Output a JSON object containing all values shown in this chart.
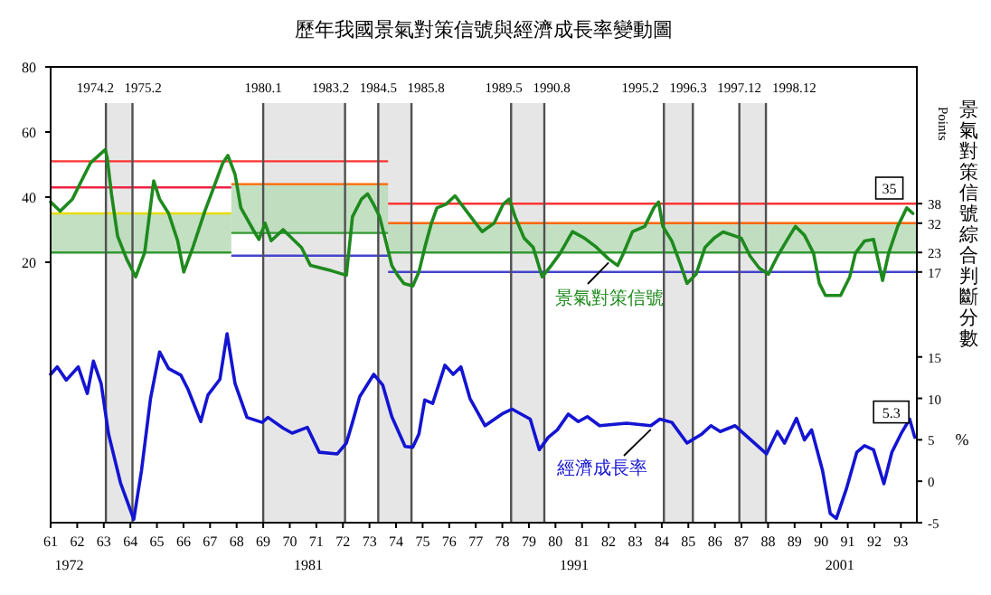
{
  "chart_data": {
    "type": "line",
    "title": "歷年我國景氣對策信號與經濟成長率變動圖",
    "xlim": [
      61,
      93.6
    ],
    "xticks": [
      61,
      62,
      63,
      64,
      65,
      66,
      67,
      68,
      69,
      70,
      71,
      72,
      73,
      74,
      75,
      76,
      77,
      78,
      79,
      80,
      81,
      82,
      83,
      84,
      85,
      86,
      87,
      88,
      89,
      90,
      91,
      92,
      93
    ],
    "x2lim": [
      1971.3,
      2003.9
    ],
    "x2ticks": [
      1972,
      1981,
      1991,
      2001
    ],
    "ylim": [
      -60,
      80
    ],
    "yticks": [
      20,
      40,
      60,
      80
    ],
    "y2lim": [
      -5,
      50
    ],
    "y2ticks": [
      -5,
      0,
      5,
      10,
      15
    ],
    "y2label": "%",
    "y3lim": [
      -60,
      80
    ],
    "y3ticks": [
      17,
      23,
      32,
      38
    ],
    "y3label": "Points",
    "annotations": [
      "景氣對策信號綜合判斷分數",
      "1974.2",
      "1975.2",
      "1980.1",
      "1983.2",
      "1984.5",
      "1985.8",
      "1989.5",
      "1990.8",
      "1995.2",
      "1996.3",
      "1997.12",
      "1998.12"
    ],
    "legend": false,
    "grid": false,
    "marker": "none",
    "bands": [
      {
        "axis": "x",
        "from": 63.08,
        "to": 64.08,
        "color": "#e6e6e6"
      },
      {
        "axis": "x",
        "from": 69.0,
        "to": 72.08,
        "color": "#e6e6e6"
      },
      {
        "axis": "x",
        "from": 73.33,
        "to": 74.58,
        "color": "#e6e6e6"
      },
      {
        "axis": "x",
        "from": 78.33,
        "to": 79.58,
        "color": "#e6e6e6"
      },
      {
        "axis": "x",
        "from": 84.08,
        "to": 85.17,
        "color": "#e6e6e6"
      },
      {
        "axis": "x",
        "from": 86.92,
        "to": 87.92,
        "color": "#e6e6e6"
      }
    ],
    "ref_lines": [
      {
        "axis": "x",
        "value": 63.08,
        "color": "#505050"
      },
      {
        "axis": "x",
        "value": 64.08,
        "color": "#505050"
      },
      {
        "axis": "x",
        "value": 69.0,
        "color": "#505050"
      },
      {
        "axis": "x",
        "value": 72.08,
        "color": "#505050"
      },
      {
        "axis": "x",
        "value": 73.33,
        "color": "#505050"
      },
      {
        "axis": "x",
        "value": 74.58,
        "color": "#505050"
      },
      {
        "axis": "x",
        "value": 78.33,
        "color": "#505050"
      },
      {
        "axis": "x",
        "value": 79.58,
        "color": "#505050"
      },
      {
        "axis": "x",
        "value": 84.08,
        "color": "#505050"
      },
      {
        "axis": "x",
        "value": 85.17,
        "color": "#505050"
      },
      {
        "axis": "x",
        "value": 86.92,
        "color": "#505050"
      },
      {
        "axis": "x",
        "value": 87.92,
        "color": "#505050"
      }
    ],
    "series": [
      {
        "type": "line",
        "color": "#339933",
        "x": [
          61,
          67.8
        ],
        "values": [
          23,
          23
        ],
        "lower": [
          23,
          23
        ],
        "upper": [
          35,
          35
        ]
      },
      {
        "type": "line",
        "color": "#339933",
        "x": [
          67.8,
          73.7
        ],
        "values": [
          29,
          29
        ],
        "lower": [
          29,
          29
        ],
        "upper": [
          44,
          44
        ]
      },
      {
        "type": "line",
        "color": "#339933",
        "x": [
          73.7,
          93.6
        ],
        "values": [
          23,
          23
        ],
        "lower": [
          23,
          23
        ],
        "upper": [
          32,
          32
        ]
      },
      {
        "type": "line",
        "color": "#ff3333",
        "x": [
          61,
          73.7
        ],
        "values": [
          51,
          51
        ]
      },
      {
        "type": "line",
        "color": "#ee2244",
        "x": [
          61,
          67.8
        ],
        "values": [
          43,
          43
        ]
      },
      {
        "type": "line",
        "color": "#e8dc00",
        "x": [
          61,
          67.8
        ],
        "values": [
          35,
          35
        ]
      },
      {
        "type": "line",
        "color": "#ff6600",
        "x": [
          67.8,
          73.7
        ],
        "values": [
          44,
          44
        ]
      },
      {
        "type": "line",
        "color": "#4444cc",
        "x": [
          67.8,
          73.7
        ],
        "values": [
          22,
          22
        ]
      },
      {
        "type": "line",
        "color": "#ff3333",
        "x": [
          73.7,
          93.6
        ],
        "values": [
          38,
          38
        ]
      },
      {
        "type": "line",
        "color": "#ff6600",
        "x": [
          73.7,
          93.6
        ],
        "values": [
          32,
          32
        ]
      },
      {
        "type": "line",
        "color": "#4444cc",
        "x": [
          73.7,
          93.6
        ],
        "values": [
          17,
          17
        ]
      },
      {
        "type": "line",
        "name": "景氣對策信號",
        "color": "#1e8a1e",
        "x": [
          61.0,
          61.36,
          61.82,
          62.16,
          62.5,
          62.84,
          63.06,
          63.13,
          63.29,
          63.52,
          63.86,
          64.2,
          64.54,
          64.88,
          65.1,
          65.44,
          65.78,
          66.01,
          66.35,
          66.8,
          67.14,
          67.48,
          67.67,
          67.94,
          68.16,
          68.62,
          68.84,
          69.07,
          69.3,
          69.75,
          70.44,
          70.78,
          71.56,
          72.13,
          72.36,
          72.7,
          72.93,
          73.16,
          73.38,
          73.61,
          73.84,
          74.06,
          74.29,
          74.63,
          74.86,
          75.08,
          75.33,
          75.54,
          75.88,
          76.22,
          76.9,
          77.24,
          77.69,
          78.03,
          78.26,
          78.48,
          78.82,
          79.16,
          79.5,
          79.84,
          80.18,
          80.64,
          81.09,
          81.54,
          82.0,
          82.34,
          82.56,
          82.9,
          83.36,
          83.7,
          83.88,
          84.04,
          84.38,
          84.72,
          84.95,
          85.29,
          85.63,
          85.97,
          86.31,
          86.99,
          87.33,
          87.67,
          88.01,
          88.35,
          88.69,
          89.03,
          89.37,
          89.71,
          89.93,
          90.16,
          90.73,
          91.07,
          91.29,
          91.63,
          91.97,
          92.31,
          92.54,
          92.88,
          93.22,
          93.45
        ],
        "values": [
          38.5,
          35.7,
          39.4,
          45,
          50.5,
          53,
          54.6,
          52,
          41,
          28,
          21,
          15.5,
          23,
          45,
          39.4,
          35,
          26.6,
          17,
          24.5,
          35.6,
          43,
          50.5,
          52.8,
          47,
          36.7,
          30,
          27,
          32,
          26.6,
          30,
          24.5,
          19,
          17.4,
          16,
          34,
          39.4,
          41,
          37.7,
          34,
          26.6,
          19,
          16,
          13.5,
          12.7,
          17,
          24.5,
          32,
          36.7,
          37.8,
          40.4,
          33,
          29.4,
          32,
          37.8,
          39.4,
          34,
          27.4,
          24.6,
          15.5,
          19,
          22.8,
          29.4,
          27.4,
          24.6,
          21,
          19,
          22.8,
          29.4,
          31,
          36.7,
          38.5,
          31,
          26.5,
          19,
          13.5,
          16.3,
          24.6,
          27.4,
          29.3,
          27.4,
          21.8,
          18.2,
          16.3,
          21.8,
          26.5,
          31,
          28.3,
          22.8,
          13.5,
          9.8,
          9.8,
          15.4,
          22.8,
          26.5,
          27,
          14.4,
          22.8,
          31,
          36.7,
          35
        ],
        "value_labels": [
          null,
          null,
          null,
          null,
          null,
          null,
          null,
          null,
          null,
          null,
          null,
          null,
          null,
          null,
          null,
          null,
          null,
          null,
          null,
          null,
          null,
          null,
          null,
          null,
          null,
          null,
          null,
          null,
          null,
          null,
          null,
          null,
          null,
          null,
          null,
          null,
          null,
          null,
          null,
          null,
          null,
          null,
          null,
          null,
          null,
          null,
          null,
          null,
          null,
          null,
          null,
          null,
          null,
          null,
          null,
          null,
          null,
          null,
          null,
          null,
          null,
          null,
          null,
          null,
          null,
          null,
          null,
          null,
          null,
          null,
          null,
          null,
          null,
          null,
          null,
          null,
          null,
          null,
          null,
          null,
          null,
          null,
          null,
          null,
          null,
          null,
          null,
          null,
          null,
          null,
          null,
          null,
          null,
          null,
          null,
          null,
          null,
          null,
          null,
          "35"
        ]
      },
      {
        "type": "line",
        "axis": "y2",
        "name": "經濟成長率",
        "color": "#1414d2",
        "x": [
          61.0,
          61.25,
          61.59,
          62.04,
          62.38,
          62.61,
          62.9,
          63.18,
          63.63,
          64.13,
          64.42,
          64.76,
          65.1,
          65.44,
          65.9,
          66.17,
          66.65,
          66.92,
          67.37,
          67.64,
          67.94,
          68.39,
          68.96,
          69.18,
          69.75,
          70.09,
          70.66,
          71.11,
          71.79,
          72.13,
          72.36,
          72.63,
          73.16,
          73.5,
          73.84,
          74.34,
          74.63,
          74.86,
          75.08,
          75.38,
          75.84,
          76.15,
          76.44,
          76.78,
          77.35,
          78.03,
          78.37,
          79.05,
          79.39,
          79.73,
          80.07,
          80.48,
          80.86,
          81.2,
          81.66,
          82.68,
          83.59,
          83.93,
          84.38,
          84.95,
          85.51,
          85.85,
          86.2,
          86.76,
          87.1,
          87.94,
          88.35,
          88.62,
          89.07,
          89.37,
          89.64,
          90.05,
          90.34,
          90.57,
          90.95,
          91.34,
          91.63,
          91.97,
          92.36,
          92.66,
          93.0,
          93.33,
          93.52
        ],
        "values": [
          12.9,
          13.8,
          12.2,
          13.8,
          10.6,
          14.5,
          11.8,
          5.7,
          -0.2,
          -4.6,
          1.3,
          10,
          15.6,
          13.6,
          12.8,
          11.1,
          7.2,
          10.4,
          12.3,
          17.8,
          11.8,
          7.7,
          7.1,
          7.7,
          6.4,
          5.8,
          6.5,
          3.5,
          3.3,
          4.6,
          7.1,
          10.2,
          12.9,
          11.6,
          7.8,
          4.2,
          4.1,
          5.7,
          9.8,
          9.4,
          14,
          12.9,
          13.8,
          10,
          6.7,
          8.2,
          8.7,
          7.5,
          3.8,
          5.3,
          6.2,
          8.1,
          7.2,
          7.8,
          6.7,
          7,
          6.7,
          7.5,
          7.1,
          4.6,
          5.7,
          6.7,
          6,
          6.7,
          5.7,
          3.3,
          6,
          4.6,
          7.6,
          5,
          6.2,
          1.3,
          -3.9,
          -4.5,
          -0.9,
          3.5,
          4.3,
          3.8,
          -0.3,
          3.5,
          5.7,
          7.5,
          5.3
        ],
        "value_labels": [
          null,
          null,
          null,
          null,
          null,
          null,
          null,
          null,
          null,
          null,
          null,
          null,
          null,
          null,
          null,
          null,
          null,
          null,
          null,
          null,
          null,
          null,
          null,
          null,
          null,
          null,
          null,
          null,
          null,
          null,
          null,
          null,
          null,
          null,
          null,
          null,
          null,
          null,
          null,
          null,
          null,
          null,
          null,
          null,
          null,
          null,
          null,
          null,
          null,
          null,
          null,
          null,
          null,
          null,
          null,
          null,
          null,
          null,
          null,
          null,
          null,
          null,
          null,
          null,
          null,
          null,
          null,
          null,
          null,
          null,
          null,
          null,
          null,
          null,
          null,
          null,
          null,
          null,
          null,
          null,
          null,
          null,
          "5.3"
        ]
      }
    ]
  }
}
